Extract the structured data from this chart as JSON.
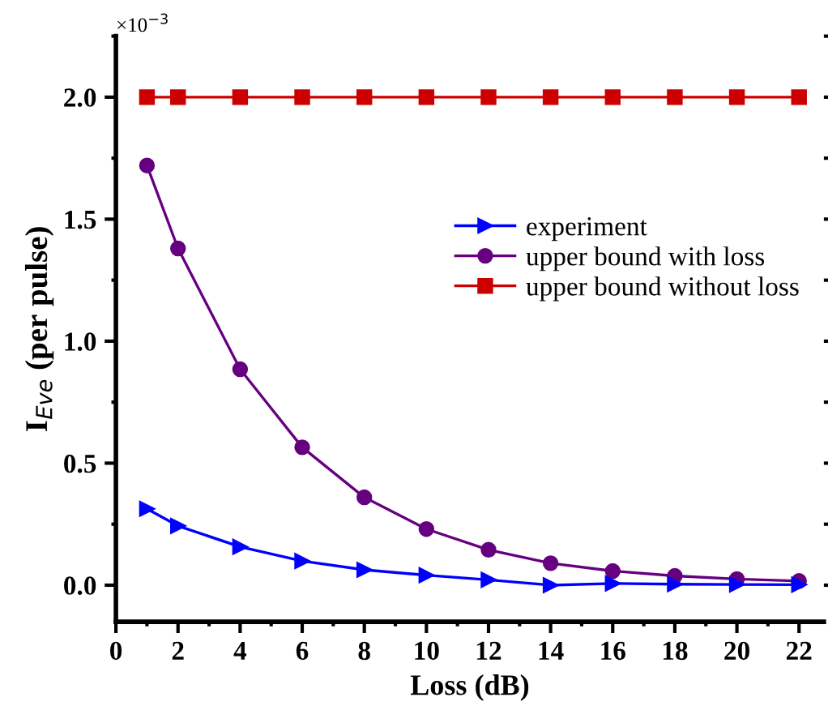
{
  "chart_data": {
    "type": "line",
    "xlabel": "Loss (dB)",
    "ylabel": "I$_{Eve}$ (per pulse)",
    "annotations": [
      "×10$^{−3}$"
    ],
    "x": [
      1,
      2,
      4,
      6,
      8,
      10,
      12,
      14,
      16,
      18,
      20,
      22
    ],
    "series": [
      {
        "name": "experiment",
        "color": "#0000ff",
        "marker": "triangle",
        "values": [
          0.313,
          0.243,
          0.157,
          0.099,
          0.063,
          0.041,
          0.022,
          0.0,
          0.007,
          0.004,
          0.003,
          0.002
        ]
      },
      {
        "name": "upper bound with loss",
        "color": "#660080",
        "marker": "circle",
        "values": [
          1.72,
          1.38,
          0.885,
          0.565,
          0.36,
          0.23,
          0.145,
          0.09,
          0.058,
          0.038,
          0.025,
          0.017
        ]
      },
      {
        "name": "upper bound without loss",
        "color": "#cc0000",
        "marker": "square",
        "values": [
          2.0,
          2.0,
          2.0,
          2.0,
          2.0,
          2.0,
          2.0,
          2.0,
          2.0,
          2.0,
          2.0,
          2.0
        ]
      }
    ],
    "xlim": [
      0,
      22.8
    ],
    "ylim": [
      -0.15,
      2.25
    ],
    "xticks": [
      0,
      2,
      4,
      6,
      8,
      10,
      12,
      14,
      16,
      18,
      20,
      22
    ],
    "yticks": [
      {
        "value": 0,
        "label": "0.0"
      },
      {
        "value": 0.5,
        "label": "0.5"
      },
      {
        "value": 1,
        "label": "1.0"
      },
      {
        "value": 1.5,
        "label": "1.5"
      },
      {
        "value": 2,
        "label": "2.0"
      }
    ],
    "grid": false,
    "legend": "right",
    "line_style": "solid"
  }
}
